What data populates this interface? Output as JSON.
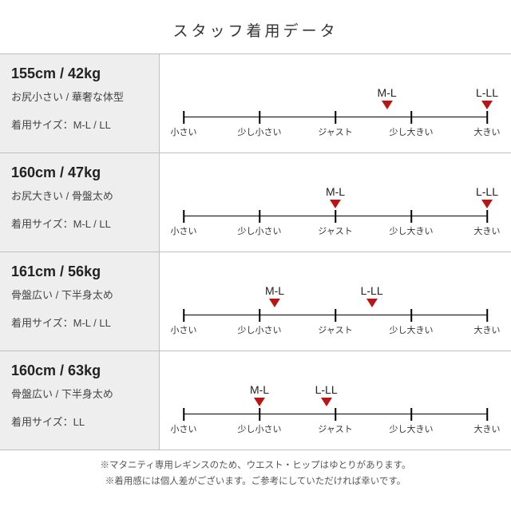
{
  "title": "スタッフ着用データ",
  "scale_labels": [
    "小さい",
    "少し小さい",
    "ジャスト",
    "少し大きい",
    "大きい"
  ],
  "tick_positions_pct": [
    0,
    25,
    50,
    75,
    100
  ],
  "colors": {
    "marker_triangle": "#b01919",
    "left_bg": "#eeeeee",
    "border": "#bfbfbf",
    "axis": "#000000",
    "text": "#333333"
  },
  "rows": [
    {
      "stat": "155cm / 42kg",
      "body": "お尻小さい / 華奢な体型",
      "worn": "着用サイズ：M-L / LL",
      "markers": [
        {
          "label": "M-L",
          "pos_pct": 67
        },
        {
          "label": "L-LL",
          "pos_pct": 100
        }
      ]
    },
    {
      "stat": "160cm / 47kg",
      "body": "お尻大きい / 骨盤太め",
      "worn": "着用サイズ：M-L / LL",
      "markers": [
        {
          "label": "M-L",
          "pos_pct": 50
        },
        {
          "label": "L-LL",
          "pos_pct": 100
        }
      ]
    },
    {
      "stat": "161cm / 56kg",
      "body": "骨盤広い / 下半身太め",
      "worn": "着用サイズ：M-L / LL",
      "markers": [
        {
          "label": "M-L",
          "pos_pct": 30
        },
        {
          "label": "L-LL",
          "pos_pct": 62
        }
      ]
    },
    {
      "stat": "160cm / 63kg",
      "body": "骨盤広い / 下半身太め",
      "worn": "着用サイズ：LL",
      "markers": [
        {
          "label": "M-L",
          "pos_pct": 25
        },
        {
          "label": "L-LL",
          "pos_pct": 47
        }
      ]
    }
  ],
  "footer": [
    "※マタニティ専用レギンスのため、ウエスト・ヒップはゆとりがあります。",
    "※着用感には個人差がございます。ご参考にしていただければ幸いです。"
  ]
}
